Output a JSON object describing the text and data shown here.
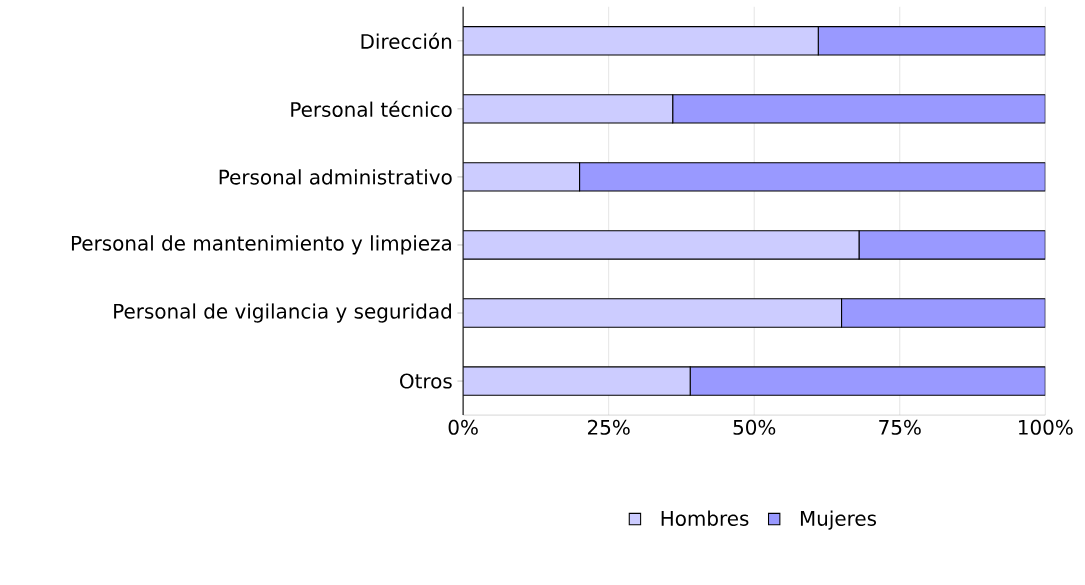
{
  "chart_data": {
    "type": "bar",
    "orientation": "horizontal",
    "stacked": true,
    "categories": [
      "Dirección",
      "Personal técnico",
      "Personal administrativo",
      "Personal de mantenimiento y limpieza",
      "Personal de vigilancia y seguridad",
      "Otros"
    ],
    "series": [
      {
        "name": "Hombres",
        "color": "#ccccff",
        "values": [
          61,
          36,
          20,
          68,
          65,
          39
        ]
      },
      {
        "name": "Mujeres",
        "color": "#9999ff",
        "values": [
          39,
          64,
          80,
          32,
          35,
          61
        ]
      }
    ],
    "xlim": [
      0,
      100
    ],
    "xticks": [
      {
        "value": 0,
        "label": "0%"
      },
      {
        "value": 25,
        "label": "25%"
      },
      {
        "value": 50,
        "label": "50%"
      },
      {
        "value": 75,
        "label": "75%"
      },
      {
        "value": 100,
        "label": "100%"
      }
    ],
    "grid": "x",
    "legend": "bottom"
  }
}
